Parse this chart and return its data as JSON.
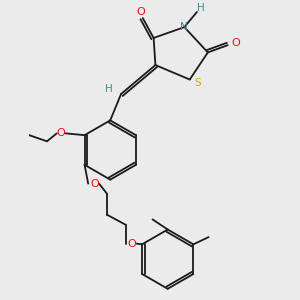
{
  "background_color": "#ebebeb",
  "atom_colors": {
    "C": "#1a1a1a",
    "H": "#3a8f8f",
    "N": "#3a8f8f",
    "O": "#ee1111",
    "S": "#ccaa00"
  },
  "bond_color": "#1a1a1a"
}
